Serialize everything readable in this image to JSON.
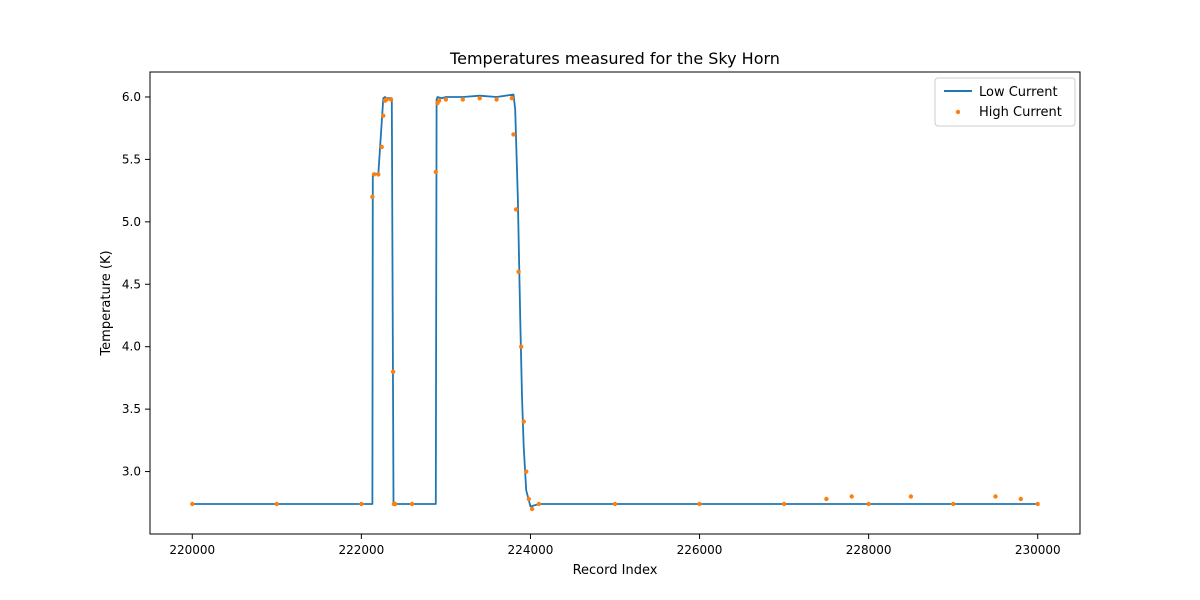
{
  "chart_data": {
    "type": "line",
    "title": "Temperatures measured for the Sky Horn",
    "xlabel": "Record Index",
    "ylabel": "Temperature (K)",
    "xlim": [
      219500,
      230500
    ],
    "ylim": [
      2.5,
      6.2
    ],
    "xticks": [
      220000,
      222000,
      224000,
      226000,
      228000,
      230000
    ],
    "yticks": [
      3.0,
      3.5,
      4.0,
      4.5,
      5.0,
      5.5,
      6.0
    ],
    "grid": false,
    "legend_position": "top-right",
    "series": [
      {
        "name": "Low Current",
        "style": "line",
        "color": "#1f77b4",
        "x": [
          220000,
          222130,
          222135,
          222150,
          222200,
          222260,
          222280,
          222300,
          222360,
          222380,
          222385,
          222400,
          222880,
          222890,
          222900,
          222950,
          223000,
          223200,
          223400,
          223600,
          223800,
          223820,
          223850,
          223880,
          223900,
          223920,
          223950,
          224000,
          224100,
          225000,
          226000,
          227000,
          228000,
          229000,
          230000
        ],
        "y": [
          2.74,
          2.74,
          5.38,
          5.39,
          5.38,
          5.99,
          6.0,
          5.99,
          5.99,
          2.74,
          2.73,
          2.74,
          2.74,
          5.98,
          6.0,
          5.99,
          6.0,
          6.0,
          6.01,
          6.0,
          6.02,
          5.9,
          5.2,
          4.2,
          3.6,
          3.2,
          2.85,
          2.72,
          2.74,
          2.74,
          2.74,
          2.74,
          2.74,
          2.74,
          2.74
        ]
      },
      {
        "name": "High Current",
        "style": "scatter",
        "color": "#ff7f0e",
        "x": [
          220000,
          221000,
          222000,
          222130,
          222150,
          222200,
          222240,
          222260,
          222280,
          222300,
          222350,
          222375,
          222385,
          222400,
          222600,
          222880,
          222900,
          222920,
          223000,
          223200,
          223400,
          223600,
          223780,
          223800,
          223830,
          223860,
          223890,
          223920,
          223950,
          223980,
          224020,
          224100,
          225000,
          226000,
          227000,
          227500,
          227800,
          228000,
          228500,
          229000,
          229500,
          229800,
          230000
        ],
        "y": [
          2.74,
          2.74,
          2.74,
          5.2,
          5.38,
          5.38,
          5.6,
          5.85,
          5.97,
          5.98,
          5.98,
          3.8,
          2.74,
          2.74,
          2.74,
          5.4,
          5.95,
          5.97,
          5.98,
          5.98,
          5.99,
          5.98,
          5.99,
          5.7,
          5.1,
          4.6,
          4.0,
          3.4,
          3.0,
          2.78,
          2.7,
          2.74,
          2.74,
          2.74,
          2.74,
          2.78,
          2.8,
          2.74,
          2.8,
          2.74,
          2.8,
          2.78,
          2.74
        ]
      }
    ]
  }
}
